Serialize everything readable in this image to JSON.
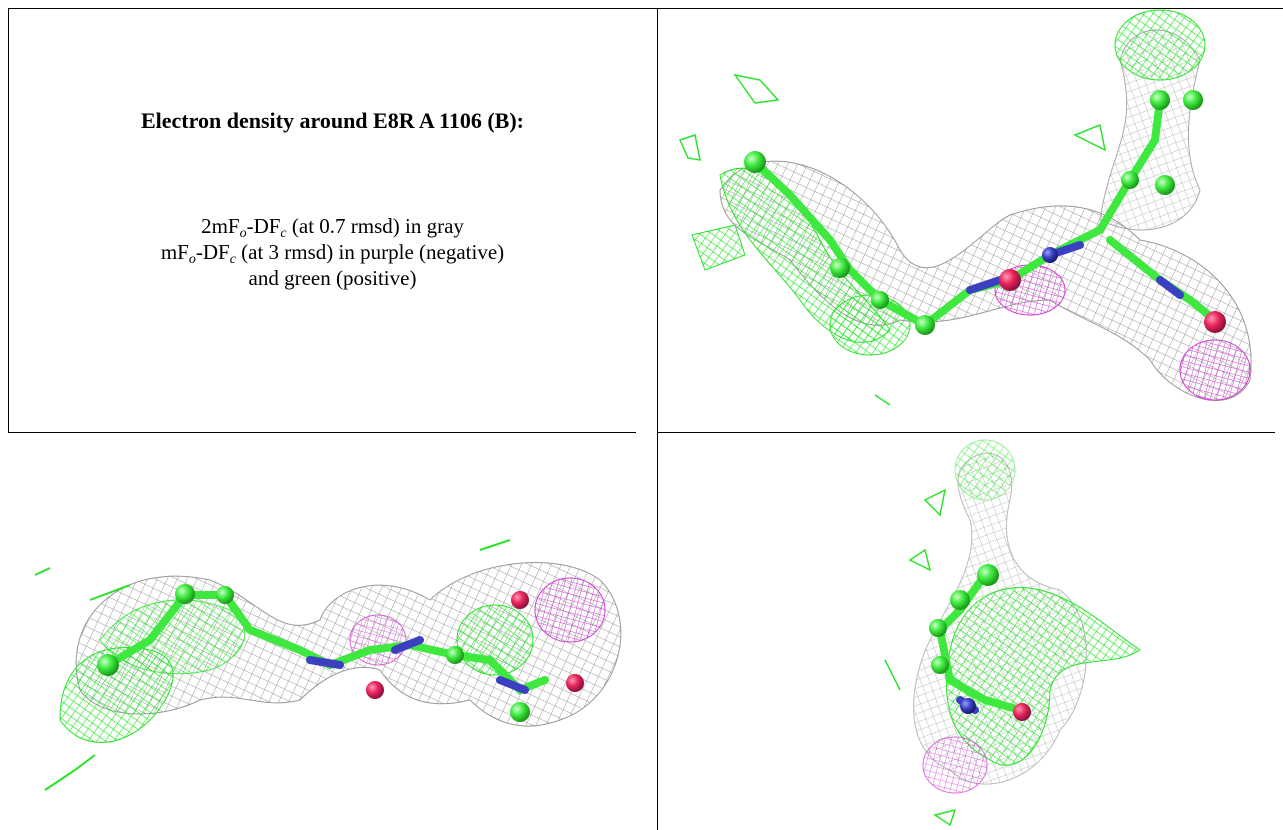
{
  "caption": {
    "title": "Electron density around E8R A 1106 (B):",
    "lines": [
      [
        "2mF",
        "o",
        "-DF",
        "c",
        " (at 0.7 rmsd) in gray"
      ],
      [
        "mF",
        "o",
        "-DF",
        "c",
        " (at 3 rmsd) in purple (negative)"
      ],
      [
        "and green (positive)"
      ]
    ]
  }
}
